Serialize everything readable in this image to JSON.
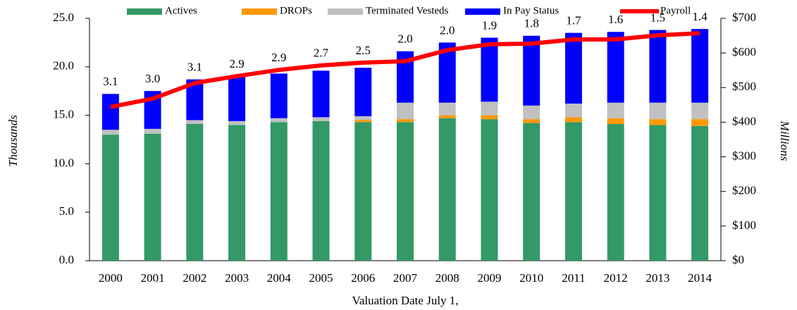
{
  "chart_data": {
    "type": "bar",
    "categories": [
      "2000",
      "2001",
      "2002",
      "2003",
      "2004",
      "2005",
      "2006",
      "2007",
      "2008",
      "2009",
      "2010",
      "2011",
      "2012",
      "2013",
      "2014"
    ],
    "series": [
      {
        "name": "Actives",
        "color": "#339966",
        "values": [
          13.0,
          13.1,
          14.1,
          14.0,
          14.3,
          14.4,
          14.3,
          14.3,
          14.7,
          14.6,
          14.2,
          14.3,
          14.1,
          14.0,
          13.9
        ]
      },
      {
        "name": "DROPs",
        "color": "#ff9900",
        "values": [
          0,
          0,
          0,
          0,
          0,
          0,
          0.2,
          0.3,
          0.3,
          0.4,
          0.4,
          0.5,
          0.6,
          0.6,
          0.7
        ]
      },
      {
        "name": "Terminated Vesteds",
        "color": "#c0c0c0",
        "values": [
          0.5,
          0.5,
          0.4,
          0.4,
          0.4,
          0.4,
          0.4,
          1.7,
          1.3,
          1.4,
          1.4,
          1.4,
          1.6,
          1.7,
          1.7
        ]
      },
      {
        "name": "In Pay Status",
        "color": "#0000ff",
        "values": [
          3.7,
          3.9,
          4.2,
          4.6,
          4.6,
          4.8,
          5.0,
          5.3,
          6.2,
          6.6,
          7.2,
          7.3,
          7.3,
          7.5,
          7.6
        ]
      },
      {
        "name": "Payroll",
        "color": "#ff0000",
        "type": "line",
        "axis": "y2",
        "values": [
          444,
          468,
          513,
          533,
          551,
          564,
          572,
          576,
          608,
          625,
          627,
          639,
          639,
          651,
          657
        ]
      }
    ],
    "annotations": [
      "3.1",
      "3.0",
      "3.1",
      "2.9",
      "2.9",
      "2.7",
      "2.5",
      "2.0",
      "2.0",
      "1.9",
      "1.8",
      "1.7",
      "1.6",
      "1.5",
      "1.4"
    ],
    "ylabel": "Thousands",
    "y2label": "Millions",
    "xlabel": "Valuation Date July 1,",
    "ylim": [
      0,
      25
    ],
    "yticks": [
      {
        "value": 0,
        "label": "0.0"
      },
      {
        "value": 5,
        "label": "5.0"
      },
      {
        "value": 10,
        "label": "10.0"
      },
      {
        "value": 15,
        "label": "15.0"
      },
      {
        "value": 20,
        "label": "20.0"
      },
      {
        "value": 25,
        "label": "25.0"
      }
    ],
    "y2lim": [
      0,
      700
    ],
    "y2ticks": [
      {
        "value": 0,
        "label": "$0"
      },
      {
        "value": 100,
        "label": "$100"
      },
      {
        "value": 200,
        "label": "$200"
      },
      {
        "value": 300,
        "label": "$300"
      },
      {
        "value": 400,
        "label": "$400"
      },
      {
        "value": 500,
        "label": "$500"
      },
      {
        "value": 600,
        "label": "$600"
      },
      {
        "value": 700,
        "label": "$700"
      }
    ],
    "legend": "top"
  }
}
